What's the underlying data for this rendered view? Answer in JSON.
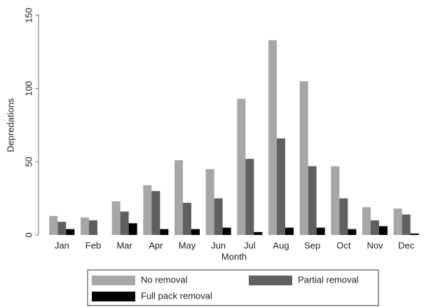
{
  "chart_data": {
    "type": "bar",
    "x_label": "Month",
    "y_label": "Depredations",
    "categories": [
      "Jan",
      "Feb",
      "Mar",
      "Apr",
      "May",
      "Jun",
      "Jul",
      "Aug",
      "Sep",
      "Oct",
      "Nov",
      "Dec"
    ],
    "series": [
      {
        "name": "No removal",
        "color": "#a6a6a6",
        "values": [
          13,
          12,
          23,
          34,
          51,
          45,
          93,
          133,
          105,
          47,
          19,
          18
        ]
      },
      {
        "name": "Partial removal",
        "color": "#606060",
        "values": [
          9,
          10,
          16,
          30,
          22,
          25,
          52,
          66,
          47,
          25,
          10,
          14
        ]
      },
      {
        "name": "Full pack removal",
        "color": "#000000",
        "values": [
          4,
          0,
          8,
          4,
          4,
          5,
          2,
          5,
          5,
          4,
          6,
          1
        ]
      }
    ],
    "ylim": [
      0,
      150
    ],
    "yticks": [
      0,
      50,
      100,
      150
    ],
    "grid": false,
    "legend": "bottom"
  }
}
